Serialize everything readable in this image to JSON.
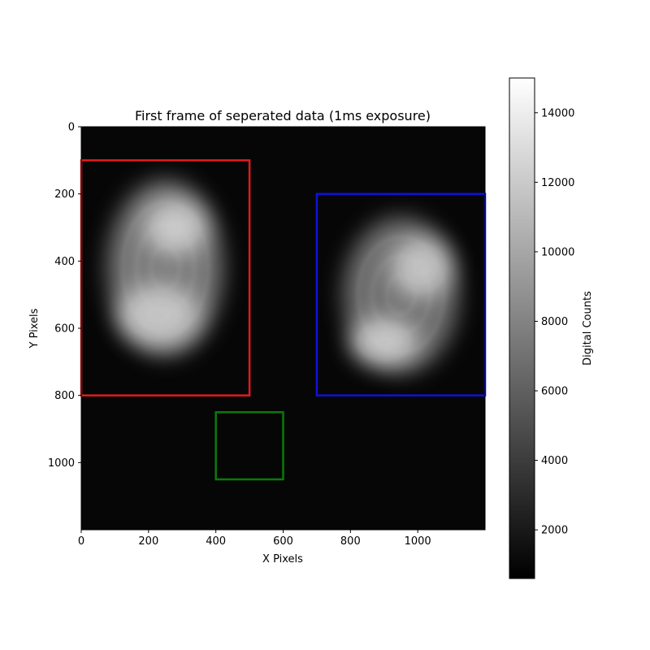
{
  "chart_data": {
    "type": "heatmap",
    "title": "First frame of seperated data (1ms exposure)",
    "xlabel": "X Pixels",
    "ylabel": "Y Pixels",
    "xlim": [
      0,
      1200
    ],
    "ylim": [
      1200,
      0
    ],
    "x_ticks": [
      0,
      200,
      400,
      600,
      800,
      1000
    ],
    "y_ticks": [
      0,
      200,
      400,
      600,
      800,
      1000
    ],
    "colormap": "gray",
    "colorbar": {
      "label": "Digital Counts",
      "range": [
        600,
        15000
      ],
      "ticks": [
        2000,
        4000,
        6000,
        8000,
        10000,
        12000,
        14000
      ]
    },
    "regions": [
      {
        "color": "#e41a1c",
        "x0": 0,
        "y0": 100,
        "x1": 500,
        "y1": 800
      },
      {
        "color": "#1010e0",
        "x0": 700,
        "y0": 200,
        "x1": 1200,
        "y1": 800
      },
      {
        "color": "#0a7a0a",
        "x0": 400,
        "y0": 850,
        "x1": 600,
        "y1": 1050
      }
    ],
    "bright_blobs": [
      {
        "cx": 250,
        "cy": 420,
        "rx": 170,
        "ry": 260,
        "peak": 13000
      },
      {
        "cx": 280,
        "cy": 300,
        "rx": 90,
        "ry": 80,
        "peak": 13500
      },
      {
        "cx": 230,
        "cy": 560,
        "rx": 120,
        "ry": 90,
        "peak": 13000
      },
      {
        "cx": 950,
        "cy": 500,
        "rx": 170,
        "ry": 230,
        "peak": 12000
      },
      {
        "cx": 1010,
        "cy": 420,
        "rx": 90,
        "ry": 90,
        "peak": 13000
      },
      {
        "cx": 900,
        "cy": 640,
        "rx": 100,
        "ry": 70,
        "peak": 13500
      }
    ]
  }
}
